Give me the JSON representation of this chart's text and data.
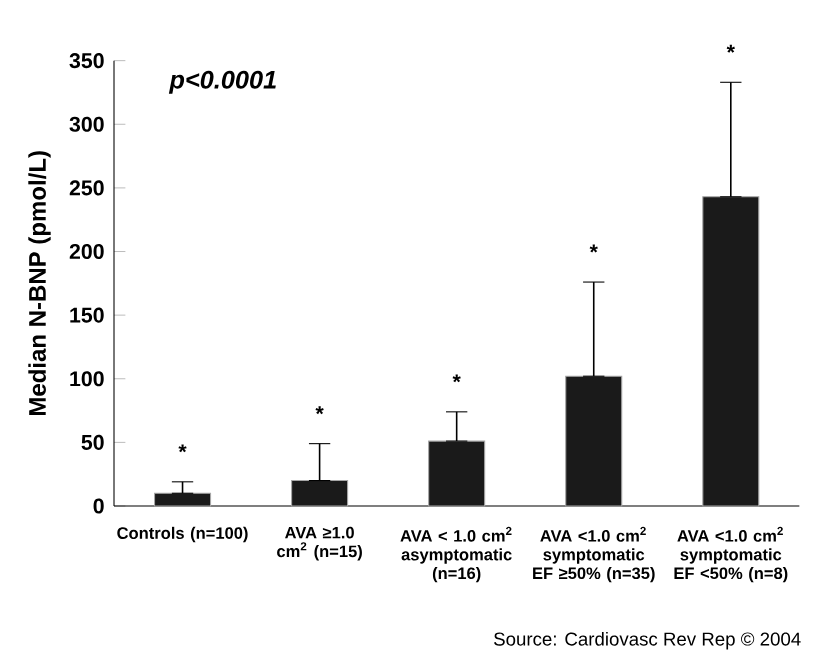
{
  "chart_data": {
    "type": "bar",
    "ylabel": "Median N-BNP (pmol/L)",
    "categories": [
      "Controls (n=100)",
      "AVA ≥1.0 cm$^{2}$ (n=15)",
      "AVA < 1.0 cm$^{2}$ asymptomatic (n=16)",
      "AVA <1.0 cm$^{2}$ symptomatic EF ≥50% (n=35)",
      "AVA <1.0 cm$^{2}$ symptomatic EF <50% (n=8)"
    ],
    "values": [
      10,
      20,
      51,
      102,
      243
    ],
    "errors": [
      [
        10,
        19
      ],
      [
        20,
        49
      ],
      [
        51,
        74
      ],
      [
        102,
        176
      ],
      [
        243,
        333
      ]
    ],
    "color": "#1a1a1a",
    "ylim": [
      0,
      350
    ],
    "yticks": [
      0,
      50,
      100,
      150,
      200,
      250,
      300,
      350
    ],
    "grid": false,
    "annotations": [
      "p<0.0001",
      "*",
      "*",
      "*",
      "*",
      "*",
      "Source: Cardiovasc Rev Rep © 2004"
    ]
  }
}
